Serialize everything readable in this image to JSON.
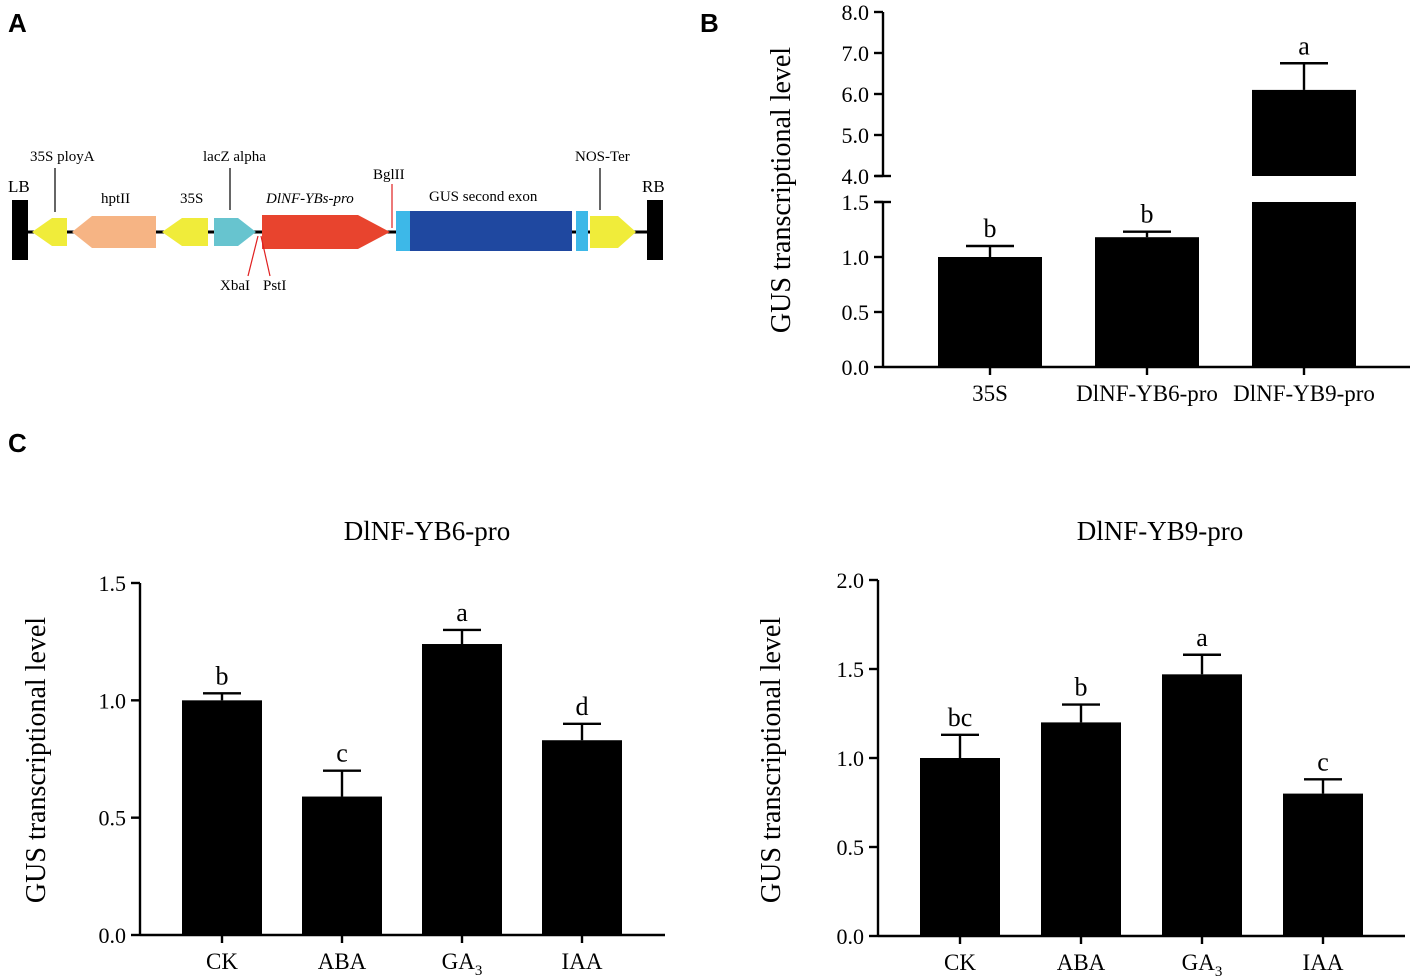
{
  "panels": {
    "a": "A",
    "b": "B",
    "c": "C"
  },
  "construct_map": {
    "left_border": "LB",
    "right_border": "RB",
    "labels": {
      "poly_a": "35S ployA",
      "hpt": "hptII",
      "promoter_35s": "35S",
      "lacz": "lacZ alpha",
      "ybs_pro": "DlNF-YBs-pro",
      "bglii": "BglII",
      "gus": "GUS second exon",
      "nos": "NOS-Ter",
      "xbai": "XbaI",
      "psti": "PstI"
    },
    "colors": {
      "yellow": "#f0ec3a",
      "orange": "#f6b484",
      "cyan": "#67c4cf",
      "red": "#e8442e",
      "light_blue": "#3db8e8",
      "dark_blue": "#1f48a0",
      "site_red": "#e02020"
    }
  },
  "chart_data": [
    {
      "id": "B",
      "type": "bar",
      "ylabel": "GUS transcriptional level",
      "categories": [
        "35S",
        "DlNF-YB6-pro",
        "DlNF-YB9-pro"
      ],
      "values": [
        1.0,
        1.18,
        6.1
      ],
      "errors": [
        0.1,
        0.05,
        0.65
      ],
      "significance": [
        "b",
        "b",
        "a"
      ],
      "axis_break": {
        "lower_range": [
          0,
          1.5
        ],
        "upper_range": [
          4.0,
          8.0
        ]
      },
      "lower_ticks": [
        "0.0",
        "0.5",
        "1.0",
        "1.5"
      ],
      "upper_ticks": [
        "4.0",
        "5.0",
        "6.0",
        "7.0",
        "8.0"
      ]
    },
    {
      "id": "C1",
      "type": "bar",
      "title": "DlNF-YB6-pro",
      "ylabel": "GUS transcriptional level",
      "categories": [
        "CK",
        "ABA",
        "GA3",
        "IAA"
      ],
      "values": [
        1.0,
        0.59,
        1.24,
        0.83
      ],
      "errors": [
        0.03,
        0.11,
        0.06,
        0.07
      ],
      "significance": [
        "b",
        "c",
        "a",
        "d"
      ],
      "ylim": [
        0,
        1.5
      ],
      "ticks": [
        "0.0",
        "0.5",
        "1.0",
        "1.5"
      ]
    },
    {
      "id": "C2",
      "type": "bar",
      "title": "DlNF-YB9-pro",
      "ylabel": "GUS transcriptional level",
      "categories": [
        "CK",
        "ABA",
        "GA3",
        "IAA"
      ],
      "values": [
        1.0,
        1.2,
        1.47,
        0.8
      ],
      "errors": [
        0.13,
        0.1,
        0.11,
        0.08
      ],
      "significance": [
        "bc",
        "b",
        "a",
        "c"
      ],
      "ylim": [
        0,
        2.0
      ],
      "ticks": [
        "0.0",
        "0.5",
        "1.0",
        "1.5",
        "2.0"
      ]
    }
  ]
}
